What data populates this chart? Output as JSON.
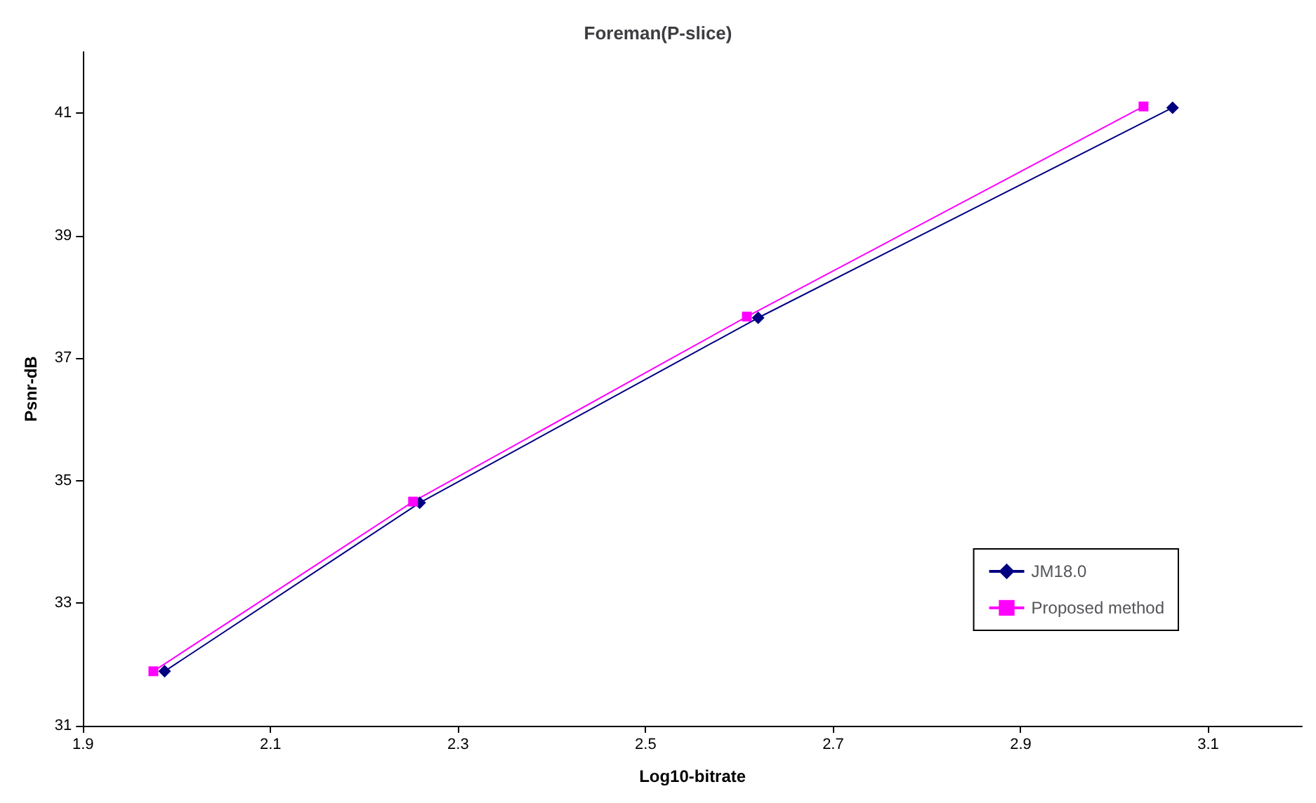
{
  "chart_data": {
    "type": "line",
    "title": "Foreman(P-slice)",
    "xlabel": "Log10-bitrate",
    "ylabel": "Psnr-dB",
    "xlim": [
      1.9,
      3.2
    ],
    "xticks": [
      1.9,
      2.1,
      2.3,
      2.5,
      2.7,
      2.9,
      3.1
    ],
    "ylim": [
      31,
      42
    ],
    "yticks": [
      31,
      33,
      35,
      37,
      39,
      41
    ],
    "grid": false,
    "legend": "bottom right",
    "series": [
      {
        "name": "JM18.0",
        "color": "#000080",
        "marker": "diamond",
        "x": [
          1.987,
          2.259,
          2.62,
          3.062
        ],
        "values": [
          31.89,
          34.64,
          37.66,
          41.09
        ]
      },
      {
        "name": "Proposed method",
        "color": "#ff00ff",
        "marker": "square",
        "x": [
          1.975,
          2.252,
          2.608,
          3.031
        ],
        "values": [
          31.89,
          34.66,
          37.68,
          41.11
        ]
      }
    ]
  }
}
